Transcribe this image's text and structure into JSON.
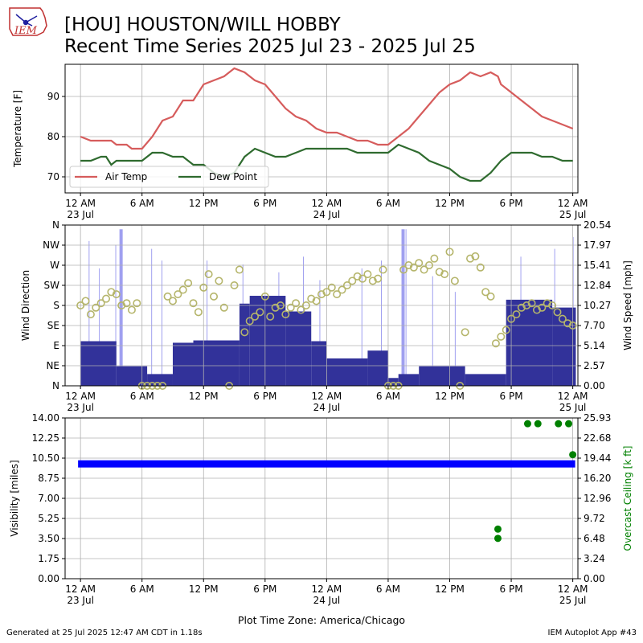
{
  "header": {
    "title_line1": "[HOU] HOUSTON/WILL HOBBY",
    "title_line2": "Recent Time Series 2025 Jul 23 - 2025 Jul 25",
    "logo_text": "IEM"
  },
  "footer": {
    "generated": "Generated at 25 Jul 2025 12:47 AM CDT in 1.18s",
    "app": "IEM Autoplot App #43"
  },
  "colors": {
    "air_temp": "#d65c5c",
    "dew_point": "#2f6b2f",
    "wind_speed": "#32329a",
    "wind_gust": "#a0a0f0",
    "wind_dir": "#b5b56b",
    "visibility": "#0000ff",
    "ceiling": "#008000",
    "grid": "#b0b0b0"
  },
  "chart_data": [
    {
      "type": "line",
      "ylabel": "Temperature [F]",
      "ylim": [
        66,
        98
      ],
      "yticks": [
        70,
        80,
        90
      ],
      "grid": true,
      "legend_placement": "lower-left",
      "x_ticks": [
        {
          "t": 0,
          "label": "12 AM",
          "sub": "23 Jul"
        },
        {
          "t": 6,
          "label": "6 AM",
          "sub": ""
        },
        {
          "t": 12,
          "label": "12 PM",
          "sub": ""
        },
        {
          "t": 18,
          "label": "6 PM",
          "sub": ""
        },
        {
          "t": 24,
          "label": "12 AM",
          "sub": "24 Jul"
        },
        {
          "t": 30,
          "label": "6 AM",
          "sub": ""
        },
        {
          "t": 36,
          "label": "12 PM",
          "sub": ""
        },
        {
          "t": 42,
          "label": "6 PM",
          "sub": ""
        },
        {
          "t": 48,
          "label": "12 AM",
          "sub": "25 Jul"
        }
      ],
      "x_range": [
        -1.5,
        48.5
      ],
      "series": [
        {
          "name": "Air Temp",
          "x": [
            0,
            1,
            2,
            3,
            3.5,
            4,
            4.5,
            5,
            6,
            7,
            8,
            9,
            10,
            11,
            12,
            13,
            14,
            15,
            16,
            17,
            18,
            19,
            20,
            21,
            22,
            23,
            24,
            25,
            26,
            27,
            28,
            29,
            30,
            31,
            32,
            33,
            34,
            35,
            36,
            37,
            38,
            39,
            40,
            40.7,
            41,
            42,
            43,
            44,
            45,
            46,
            47,
            48
          ],
          "values": [
            80,
            79,
            79,
            79,
            78,
            78,
            78,
            77,
            77,
            80,
            84,
            85,
            89,
            89,
            93,
            94,
            95,
            97,
            96,
            94,
            93,
            90,
            87,
            85,
            84,
            82,
            81,
            81,
            80,
            79,
            79,
            78,
            78,
            80,
            82,
            85,
            88,
            91,
            93,
            94,
            96,
            95,
            96,
            95,
            93,
            91,
            89,
            87,
            85,
            84,
            83,
            82
          ]
        },
        {
          "name": "Dew Point",
          "x": [
            0,
            1,
            2,
            2.5,
            3,
            3.5,
            4,
            5,
            6,
            7,
            8,
            9,
            10,
            11,
            12,
            13,
            14,
            15,
            16,
            17,
            18,
            19,
            20,
            21,
            22,
            23,
            24,
            25,
            26,
            27,
            28,
            29,
            30,
            31,
            32,
            33,
            34,
            35,
            36,
            37,
            38,
            39,
            40,
            41,
            42,
            43,
            44,
            45,
            46,
            47,
            48
          ],
          "values": [
            74,
            74,
            75,
            75,
            73,
            74,
            74,
            74,
            74,
            76,
            76,
            75,
            75,
            73,
            73,
            71,
            70,
            71,
            75,
            77,
            76,
            75,
            75,
            76,
            77,
            77,
            77,
            77,
            77,
            76,
            76,
            76,
            76,
            78,
            77,
            76,
            74,
            73,
            72,
            70,
            69,
            69,
            71,
            74,
            76,
            76,
            76,
            75,
            75,
            74,
            74
          ]
        }
      ]
    },
    {
      "type": "bar",
      "ylabel": "Wind Direction",
      "y2label": "Wind Speed [mph]",
      "y_categories": [
        "N",
        "NE",
        "E",
        "SE",
        "S",
        "SW",
        "W",
        "NW",
        "N"
      ],
      "y2_ticks": [
        "0.00",
        "2.57",
        "5.14",
        "7.70",
        "10.27",
        "12.84",
        "15.41",
        "17.97",
        "20.54"
      ],
      "y2lim": [
        0,
        20.54
      ],
      "grid": true,
      "speed_segments": [
        {
          "from": 0,
          "to": 3.5,
          "mph": 5.7
        },
        {
          "from": 3.5,
          "to": 6.5,
          "mph": 2.5
        },
        {
          "from": 6.5,
          "to": 9,
          "mph": 1.5
        },
        {
          "from": 9,
          "to": 11,
          "mph": 5.5
        },
        {
          "from": 11,
          "to": 15.5,
          "mph": 5.8
        },
        {
          "from": 15.5,
          "to": 16.5,
          "mph": 10.5
        },
        {
          "from": 16.5,
          "to": 20,
          "mph": 11.5
        },
        {
          "from": 20,
          "to": 22.5,
          "mph": 9.5
        },
        {
          "from": 22.5,
          "to": 24,
          "mph": 5.7
        },
        {
          "from": 24,
          "to": 28,
          "mph": 3.5
        },
        {
          "from": 28,
          "to": 30,
          "mph": 4.5
        },
        {
          "from": 30,
          "to": 31,
          "mph": 1.0
        },
        {
          "from": 31,
          "to": 33,
          "mph": 1.5
        },
        {
          "from": 33,
          "to": 37.5,
          "mph": 2.5
        },
        {
          "from": 37.5,
          "to": 41.5,
          "mph": 1.5
        },
        {
          "from": 41.5,
          "to": 46,
          "mph": 11.0
        },
        {
          "from": 46,
          "to": 48.3,
          "mph": 10.0
        }
      ],
      "gusts": [
        {
          "t": 0.8,
          "mph": 18.5
        },
        {
          "t": 1.8,
          "mph": 15.0
        },
        {
          "t": 3.4,
          "mph": 18.0
        },
        {
          "t": 3.8,
          "mph": 20.0
        },
        {
          "t": 6.9,
          "mph": 17.5
        },
        {
          "t": 7.9,
          "mph": 16.0
        },
        {
          "t": 12.3,
          "mph": 16.0
        },
        {
          "t": 15.8,
          "mph": 15.5
        },
        {
          "t": 19.3,
          "mph": 14.5
        },
        {
          "t": 21.7,
          "mph": 16.5
        },
        {
          "t": 23.3,
          "mph": 13.5
        },
        {
          "t": 27.4,
          "mph": 15.0
        },
        {
          "t": 29.3,
          "mph": 16.0
        },
        {
          "t": 31.3,
          "mph": 20.0
        },
        {
          "t": 31.7,
          "mph": 20.0
        },
        {
          "t": 34.3,
          "mph": 14.0
        },
        {
          "t": 36.5,
          "mph": 12.0
        },
        {
          "t": 42.9,
          "mph": 16.5
        },
        {
          "t": 46.2,
          "mph": 17.5
        },
        {
          "t": 48.0,
          "mph": 19.0
        }
      ],
      "direction_deg": [
        [
          0,
          180
        ],
        [
          0.5,
          190
        ],
        [
          1,
          160
        ],
        [
          1.5,
          175
        ],
        [
          2,
          185
        ],
        [
          2.5,
          195
        ],
        [
          3,
          210
        ],
        [
          3.5,
          205
        ],
        [
          4,
          180
        ],
        [
          4.5,
          185
        ],
        [
          5,
          170
        ],
        [
          5.5,
          185
        ],
        [
          6,
          0
        ],
        [
          6.5,
          0
        ],
        [
          7,
          0
        ],
        [
          7.5,
          0
        ],
        [
          8,
          0
        ],
        [
          8.5,
          200
        ],
        [
          9,
          190
        ],
        [
          9.5,
          205
        ],
        [
          10,
          215
        ],
        [
          10.5,
          230
        ],
        [
          11,
          185
        ],
        [
          11.5,
          165
        ],
        [
          12,
          220
        ],
        [
          12.5,
          250
        ],
        [
          13,
          200
        ],
        [
          13.5,
          235
        ],
        [
          14,
          175
        ],
        [
          14.5,
          0
        ],
        [
          15,
          225
        ],
        [
          15.5,
          260
        ],
        [
          16,
          120
        ],
        [
          16.5,
          145
        ],
        [
          17,
          155
        ],
        [
          17.5,
          165
        ],
        [
          18,
          200
        ],
        [
          18.5,
          155
        ],
        [
          19,
          175
        ],
        [
          19.5,
          180
        ],
        [
          20,
          160
        ],
        [
          20.5,
          175
        ],
        [
          21,
          185
        ],
        [
          21.5,
          170
        ],
        [
          22,
          180
        ],
        [
          22.5,
          195
        ],
        [
          23,
          190
        ],
        [
          23.5,
          205
        ],
        [
          24,
          210
        ],
        [
          24.5,
          220
        ],
        [
          25,
          205
        ],
        [
          25.5,
          215
        ],
        [
          26,
          225
        ],
        [
          26.5,
          235
        ],
        [
          27,
          245
        ],
        [
          27.5,
          240
        ],
        [
          28,
          250
        ],
        [
          28.5,
          235
        ],
        [
          29,
          240
        ],
        [
          29.5,
          260
        ],
        [
          30,
          0
        ],
        [
          30.5,
          0
        ],
        [
          31,
          0
        ],
        [
          31.5,
          260
        ],
        [
          32,
          270
        ],
        [
          32.5,
          265
        ],
        [
          33,
          275
        ],
        [
          33.5,
          260
        ],
        [
          34,
          270
        ],
        [
          34.5,
          285
        ],
        [
          35,
          255
        ],
        [
          35.5,
          250
        ],
        [
          36,
          300
        ],
        [
          36.5,
          235
        ],
        [
          37,
          0
        ],
        [
          37.5,
          120
        ],
        [
          38,
          285
        ],
        [
          38.5,
          290
        ],
        [
          39,
          265
        ],
        [
          39.5,
          210
        ],
        [
          40,
          200
        ],
        [
          40.5,
          95
        ],
        [
          41,
          110
        ],
        [
          41.5,
          125
        ],
        [
          42,
          150
        ],
        [
          42.5,
          160
        ],
        [
          43,
          175
        ],
        [
          43.5,
          180
        ],
        [
          44,
          185
        ],
        [
          44.5,
          170
        ],
        [
          45,
          175
        ],
        [
          45.5,
          185
        ],
        [
          46,
          180
        ],
        [
          46.5,
          165
        ],
        [
          47,
          150
        ],
        [
          47.5,
          140
        ],
        [
          48,
          135
        ]
      ]
    },
    {
      "type": "scatter",
      "ylabel": "Visibility [miles]",
      "y2label": "Overcast Ceiling [k ft]",
      "yticks": [
        "0.00",
        "1.75",
        "3.50",
        "5.25",
        "7.00",
        "8.75",
        "10.50",
        "12.25",
        "14.00"
      ],
      "ylim": [
        0,
        14
      ],
      "y2_ticks": [
        "0.00",
        "3.24",
        "6.48",
        "9.72",
        "12.96",
        "16.20",
        "19.44",
        "22.68",
        "25.93"
      ],
      "y2lim": [
        0,
        25.93
      ],
      "grid": true,
      "visibility_miles": 10,
      "ceiling_kft": [
        {
          "t": 40.7,
          "v": 8.0
        },
        {
          "t": 40.7,
          "v": 6.5
        },
        {
          "t": 43.6,
          "v": 25.0
        },
        {
          "t": 44.6,
          "v": 25.0
        },
        {
          "t": 46.6,
          "v": 25.0
        },
        {
          "t": 47.6,
          "v": 25.0
        },
        {
          "t": 48.0,
          "v": 20.0
        }
      ],
      "xlabel": "Plot Time Zone: America/Chicago"
    }
  ]
}
